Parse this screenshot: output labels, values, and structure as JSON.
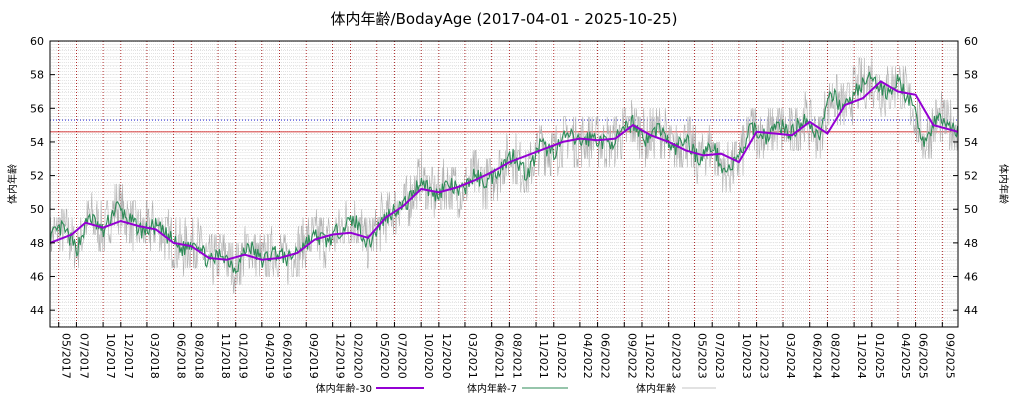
{
  "chart_data": {
    "type": "line",
    "title": "体内年齢/BodayAge (2017-04-01 - 2025-10-25)",
    "ylabel": "体内年齢",
    "y2label": "体内年齢",
    "ylim": [
      43,
      60
    ],
    "yticks": [
      "44",
      "46",
      "48",
      "50",
      "52",
      "54",
      "56",
      "58",
      "60"
    ],
    "xlim": [
      "2017-04-01",
      "2025-10-25"
    ],
    "xticks": [
      "05/2017",
      "07/2017",
      "10/2017",
      "12/2017",
      "03/2018",
      "06/2018",
      "08/2018",
      "11/2018",
      "01/2019",
      "04/2019",
      "06/2019",
      "09/2019",
      "12/2019",
      "02/2020",
      "05/2020",
      "07/2020",
      "10/2020",
      "12/2020",
      "03/2021",
      "06/2021",
      "08/2021",
      "11/2021",
      "01/2022",
      "04/2022",
      "06/2022",
      "09/2022",
      "11/2022",
      "02/2023",
      "05/2023",
      "07/2023",
      "10/2023",
      "12/2023",
      "03/2024",
      "06/2024",
      "08/2024",
      "11/2024",
      "01/2025",
      "04/2025",
      "06/2025",
      "09/2025"
    ],
    "reference_lines": [
      {
        "value": 55.3,
        "color": "#0000cc",
        "style": "dotted"
      },
      {
        "value": 54.6,
        "color": "#cc0000",
        "style": "solid"
      }
    ],
    "grid": true,
    "legend_position": "bottom",
    "series": [
      {
        "name": "体内年齢-30",
        "color": "#9400d3",
        "x": [
          "2017-04-01",
          "2017-06-15",
          "2017-08-01",
          "2017-10-01",
          "2017-12-01",
          "2018-02-01",
          "2018-04-01",
          "2018-06-01",
          "2018-08-01",
          "2018-10-01",
          "2018-12-01",
          "2019-02-01",
          "2019-04-01",
          "2019-06-01",
          "2019-08-01",
          "2019-10-01",
          "2019-12-01",
          "2020-02-01",
          "2020-04-01",
          "2020-06-01",
          "2020-08-01",
          "2020-10-01",
          "2020-12-01",
          "2021-02-01",
          "2021-04-01",
          "2021-06-01",
          "2021-08-01",
          "2021-10-01",
          "2021-12-01",
          "2022-02-01",
          "2022-04-01",
          "2022-06-01",
          "2022-08-01",
          "2022-10-01",
          "2022-12-01",
          "2023-02-01",
          "2023-04-01",
          "2023-06-01",
          "2023-08-01",
          "2023-10-01",
          "2023-12-01",
          "2024-02-01",
          "2024-04-01",
          "2024-06-01",
          "2024-08-01",
          "2024-10-01",
          "2024-12-01",
          "2025-02-01",
          "2025-04-01",
          "2025-06-01",
          "2025-08-01",
          "2025-10-25"
        ],
        "y": [
          48.0,
          48.5,
          49.2,
          48.9,
          49.3,
          49.0,
          48.8,
          48.0,
          47.8,
          47.1,
          47.0,
          47.3,
          47.0,
          47.1,
          47.4,
          48.2,
          48.5,
          48.6,
          48.3,
          49.5,
          50.2,
          51.2,
          51.0,
          51.3,
          51.7,
          52.2,
          52.8,
          53.2,
          53.6,
          54.0,
          54.2,
          54.1,
          54.2,
          55.0,
          54.4,
          54.0,
          53.5,
          53.2,
          53.3,
          52.8,
          54.6,
          54.5,
          54.4,
          55.2,
          54.5,
          56.2,
          56.6,
          57.6,
          57.0,
          56.8,
          55.0,
          54.6
        ]
      },
      {
        "name": "体内年齢-7",
        "color": "#2e8b57",
        "x": [
          "2017-04-01",
          "2017-05-15",
          "2017-07-01",
          "2017-08-15",
          "2017-10-01",
          "2017-11-15",
          "2018-01-01",
          "2018-02-15",
          "2018-04-01",
          "2018-05-15",
          "2018-07-01",
          "2018-08-15",
          "2018-10-01",
          "2018-11-15",
          "2019-01-01",
          "2019-02-15",
          "2019-04-01",
          "2019-05-15",
          "2019-07-01",
          "2019-08-15",
          "2019-10-01",
          "2019-11-15",
          "2020-01-01",
          "2020-02-15",
          "2020-04-01",
          "2020-05-15",
          "2020-07-01",
          "2020-08-15",
          "2020-10-01",
          "2020-11-15",
          "2021-01-01",
          "2021-02-15",
          "2021-04-01",
          "2021-05-15",
          "2021-07-01",
          "2021-08-15",
          "2021-10-01",
          "2021-11-15",
          "2022-01-01",
          "2022-02-15",
          "2022-04-01",
          "2022-05-15",
          "2022-07-01",
          "2022-08-15",
          "2022-10-01",
          "2022-11-15",
          "2023-01-01",
          "2023-02-15",
          "2023-04-01",
          "2023-05-15",
          "2023-07-01",
          "2023-08-15",
          "2023-10-01",
          "2023-11-15",
          "2024-01-01",
          "2024-02-15",
          "2024-04-01",
          "2024-05-15",
          "2024-07-01",
          "2024-08-15",
          "2024-10-01",
          "2024-11-15",
          "2025-01-01",
          "2025-02-15",
          "2025-04-01",
          "2025-05-15",
          "2025-07-01",
          "2025-08-15",
          "2025-10-25"
        ],
        "y": [
          48.3,
          48.9,
          47.6,
          49.6,
          48.6,
          50.2,
          49.3,
          48.7,
          49.0,
          48.3,
          47.6,
          48.2,
          46.8,
          47.4,
          46.5,
          47.9,
          46.9,
          47.5,
          47.0,
          47.8,
          48.4,
          48.1,
          48.9,
          49.4,
          47.9,
          49.2,
          50.0,
          50.4,
          51.8,
          50.8,
          51.5,
          51.0,
          52.0,
          51.6,
          52.5,
          53.3,
          52.0,
          53.8,
          53.4,
          54.4,
          54.0,
          54.3,
          53.9,
          54.3,
          55.2,
          54.1,
          54.9,
          53.5,
          54.2,
          53.0,
          53.8,
          52.2,
          53.0,
          54.9,
          54.3,
          55.0,
          54.5,
          55.5,
          54.3,
          56.8,
          56.0,
          57.2,
          57.8,
          56.9,
          57.6,
          56.3,
          54.0,
          55.4,
          54.7
        ]
      },
      {
        "name": "体内年齢",
        "color": "#b0b0b0"
      }
    ]
  }
}
